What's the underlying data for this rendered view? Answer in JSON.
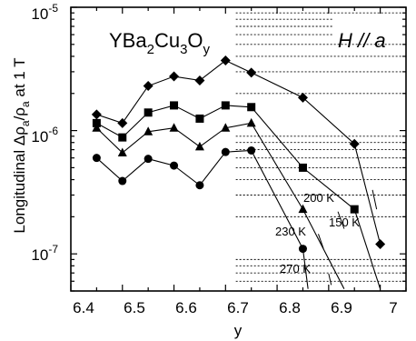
{
  "chart_data": {
    "type": "line",
    "xlabel": "y",
    "ylabel_parts": {
      "base": "Longitudinal  Δρ",
      "sub1": "a",
      "mid": "/ρ",
      "sub2": "a",
      "end": " at 1 T"
    },
    "x_ticks": [
      "6.4",
      "6.5",
      "6.6",
      "6.7",
      "6.8",
      "6.9",
      "7"
    ],
    "y_tick_labels": [
      {
        "base": "10",
        "exp": "-7",
        "value": 1e-07
      },
      {
        "base": "10",
        "exp": "-6",
        "value": 1e-06
      },
      {
        "base": "10",
        "exp": "-5",
        "value": 1e-05
      }
    ],
    "xlim": [
      6.4,
      7.05
    ],
    "ylim": [
      5e-08,
      1e-05
    ],
    "yscale": "log",
    "grid": "dotted horizontal at minor decades",
    "annotations": {
      "formula": {
        "p1": "YBa",
        "s1": "2",
        "p2": "Cu",
        "s2": "3",
        "p3": "O",
        "s3": "y"
      },
      "field": "H // a"
    },
    "series": [
      {
        "name": "150 K",
        "marker": "diamond",
        "x": [
          6.45,
          6.5,
          6.55,
          6.6,
          6.65,
          6.7,
          6.75,
          6.85,
          6.95,
          7.0
        ],
        "y": [
          1.35e-06,
          1.15e-06,
          2.3e-06,
          2.75e-06,
          2.55e-06,
          3.7e-06,
          2.95e-06,
          1.85e-06,
          7.8e-07,
          1.2e-07
        ]
      },
      {
        "name": "200 K",
        "marker": "square",
        "x": [
          6.45,
          6.5,
          6.55,
          6.6,
          6.65,
          6.7,
          6.75,
          6.85,
          6.95,
          7.0
        ],
        "y": [
          1.15e-06,
          8.8e-07,
          1.4e-06,
          1.6e-06,
          1.25e-06,
          1.6e-06,
          1.55e-06,
          5e-07,
          2.3e-07,
          5.2e-08
        ]
      },
      {
        "name": "230 K",
        "marker": "triangle",
        "x": [
          6.45,
          6.5,
          6.55,
          6.6,
          6.65,
          6.7,
          6.75,
          6.85,
          6.93
        ],
        "y": [
          1.05e-06,
          6.6e-07,
          9.8e-07,
          1.05e-06,
          7.4e-07,
          1.05e-06,
          1.15e-06,
          2.3e-07,
          5.2e-08
        ]
      },
      {
        "name": "270 K",
        "marker": "circle",
        "x": [
          6.45,
          6.5,
          6.55,
          6.6,
          6.65,
          6.7,
          6.75,
          6.85,
          6.86
        ],
        "y": [
          6e-07,
          3.9e-07,
          5.9e-07,
          5.2e-07,
          3.6e-07,
          6.7e-07,
          6.9e-07,
          1.1e-07,
          5.2e-08
        ]
      }
    ]
  }
}
